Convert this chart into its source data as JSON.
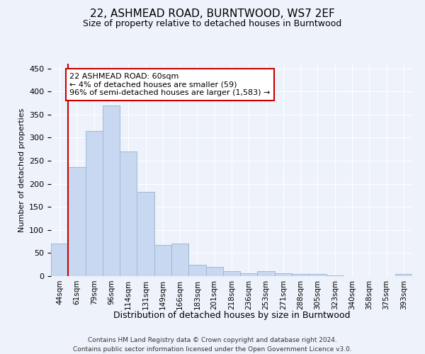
{
  "title": "22, ASHMEAD ROAD, BURNTWOOD, WS7 2EF",
  "subtitle": "Size of property relative to detached houses in Burntwood",
  "xlabel": "Distribution of detached houses by size in Burntwood",
  "ylabel": "Number of detached properties",
  "bar_color": "#c8d8f0",
  "bar_edge_color": "#a0b8d8",
  "categories": [
    "44sqm",
    "61sqm",
    "79sqm",
    "96sqm",
    "114sqm",
    "131sqm",
    "149sqm",
    "166sqm",
    "183sqm",
    "201sqm",
    "218sqm",
    "236sqm",
    "253sqm",
    "271sqm",
    "288sqm",
    "305sqm",
    "323sqm",
    "340sqm",
    "358sqm",
    "375sqm",
    "393sqm"
  ],
  "values": [
    70,
    236,
    315,
    370,
    270,
    183,
    67,
    70,
    24,
    20,
    11,
    6,
    11,
    6,
    4,
    4,
    1,
    0,
    0,
    0,
    4
  ],
  "property_line_color": "#cc0000",
  "annotation_line1": "22 ASHMEAD ROAD: 60sqm",
  "annotation_line2": "← 4% of detached houses are smaller (59)",
  "annotation_line3": "96% of semi-detached houses are larger (1,583) →",
  "annotation_box_color": "#ffffff",
  "annotation_box_edge_color": "#cc0000",
  "ylim": [
    0,
    460
  ],
  "yticks": [
    0,
    50,
    100,
    150,
    200,
    250,
    300,
    350,
    400,
    450
  ],
  "footer1": "Contains HM Land Registry data © Crown copyright and database right 2024.",
  "footer2": "Contains public sector information licensed under the Open Government Licence v3.0.",
  "background_color": "#eef2fa",
  "plot_background": "#eef2fa",
  "grid_color": "#ffffff",
  "title_fontsize": 11,
  "subtitle_fontsize": 9,
  "ylabel_fontsize": 8,
  "xlabel_fontsize": 9,
  "tick_fontsize": 7.5,
  "annotation_fontsize": 8,
  "footer_fontsize": 6.5
}
